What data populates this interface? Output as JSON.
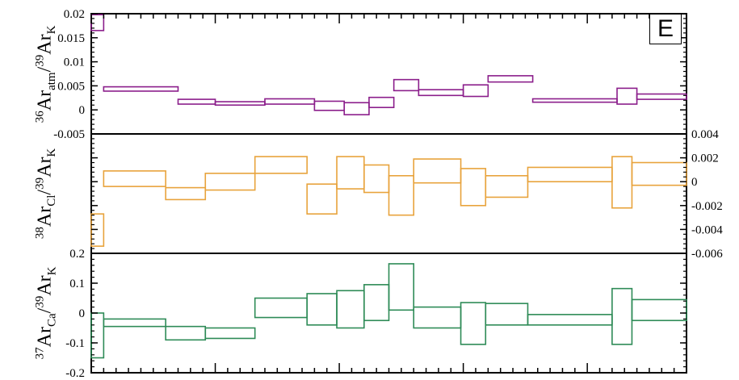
{
  "panel_label": "E",
  "chart_data": [
    {
      "type": "step-band",
      "ylabel": {
        "sup1": "36",
        "base1": "Ar",
        "sub1": "atm",
        "sep": "/",
        "sup2": "39",
        "base2": "Ar",
        "sub2": "K"
      },
      "ylim": [
        -0.005,
        0.02
      ],
      "yaxis_side": "left",
      "yticks": [
        "0.02",
        "0.015",
        "0.01",
        "0.005",
        "0",
        "-0.005"
      ],
      "ytick_values": [
        0.02,
        0.015,
        0.01,
        0.005,
        0,
        -0.005
      ],
      "color": "#8B1E8B",
      "steps": [
        {
          "x0": 0,
          "x1": 0.5,
          "lo": 0.0165,
          "hi": 0.0198
        },
        {
          "x0": 0.5,
          "x1": 3.5,
          "lo": 0.0039,
          "hi": 0.0048
        },
        {
          "x0": 3.5,
          "x1": 5.0,
          "lo": 0.0012,
          "hi": 0.0022
        },
        {
          "x0": 5.0,
          "x1": 7.0,
          "lo": 0.001,
          "hi": 0.0017
        },
        {
          "x0": 7.0,
          "x1": 9.0,
          "lo": 0.0012,
          "hi": 0.0023
        },
        {
          "x0": 9.0,
          "x1": 10.2,
          "lo": -0.0001,
          "hi": 0.0018
        },
        {
          "x0": 10.2,
          "x1": 11.2,
          "lo": -0.001,
          "hi": 0.0015
        },
        {
          "x0": 11.2,
          "x1": 12.2,
          "lo": 0.0005,
          "hi": 0.0026
        },
        {
          "x0": 12.2,
          "x1": 13.2,
          "lo": 0.004,
          "hi": 0.0063
        },
        {
          "x0": 13.2,
          "x1": 15.0,
          "lo": 0.003,
          "hi": 0.0042
        },
        {
          "x0": 15.0,
          "x1": 16.0,
          "lo": 0.0028,
          "hi": 0.0052
        },
        {
          "x0": 16.0,
          "x1": 17.8,
          "lo": 0.0058,
          "hi": 0.0071
        },
        {
          "x0": 17.8,
          "x1": 21.2,
          "lo": 0.0016,
          "hi": 0.0023
        },
        {
          "x0": 21.2,
          "x1": 22.0,
          "lo": 0.0012,
          "hi": 0.0045
        },
        {
          "x0": 22.0,
          "x1": 24.0,
          "lo": 0.0022,
          "hi": 0.0033
        }
      ]
    },
    {
      "type": "step-band",
      "ylabel": {
        "sup1": "38",
        "base1": "Ar",
        "sub1": "Cl",
        "sep": "/",
        "sup2": "39",
        "base2": "Ar",
        "sub2": "K"
      },
      "ylim": [
        -0.006,
        0.004
      ],
      "yaxis_side": "right",
      "yticks": [
        "0.004",
        "0.002",
        "0",
        "-0.002",
        "-0.004",
        "-0.006"
      ],
      "ytick_values": [
        0.004,
        0.002,
        0,
        -0.002,
        -0.004,
        -0.006
      ],
      "color": "#E8A33C",
      "steps": [
        {
          "x0": 0,
          "x1": 0.5,
          "lo": -0.0054,
          "hi": -0.0027
        },
        {
          "x0": 0.5,
          "x1": 3.0,
          "lo": -0.0004,
          "hi": 0.0009
        },
        {
          "x0": 3.0,
          "x1": 4.6,
          "lo": -0.0015,
          "hi": -0.0005
        },
        {
          "x0": 4.6,
          "x1": 6.6,
          "lo": -0.0007,
          "hi": 0.0007
        },
        {
          "x0": 6.6,
          "x1": 8.7,
          "lo": 0.0007,
          "hi": 0.0021
        },
        {
          "x0": 8.7,
          "x1": 9.9,
          "lo": -0.0027,
          "hi": -0.0002
        },
        {
          "x0": 9.9,
          "x1": 11.0,
          "lo": -0.0006,
          "hi": 0.0021
        },
        {
          "x0": 11.0,
          "x1": 12.0,
          "lo": -0.0009,
          "hi": 0.0014
        },
        {
          "x0": 12.0,
          "x1": 13.0,
          "lo": -0.0028,
          "hi": 0.0005
        },
        {
          "x0": 13.0,
          "x1": 14.9,
          "lo": -0.0001,
          "hi": 0.0019
        },
        {
          "x0": 14.9,
          "x1": 15.9,
          "lo": -0.002,
          "hi": 0.0011
        },
        {
          "x0": 15.9,
          "x1": 17.6,
          "lo": -0.0013,
          "hi": 0.0005
        },
        {
          "x0": 17.6,
          "x1": 21.0,
          "lo": 0.0,
          "hi": 0.0012
        },
        {
          "x0": 21.0,
          "x1": 21.8,
          "lo": -0.0022,
          "hi": 0.0021
        },
        {
          "x0": 21.8,
          "x1": 24.0,
          "lo": -0.0003,
          "hi": 0.0016
        }
      ]
    },
    {
      "type": "step-band",
      "ylabel": {
        "sup1": "37",
        "base1": "Ar",
        "sub1": "Ca",
        "sep": "/",
        "sup2": "39",
        "base2": "Ar",
        "sub2": "K"
      },
      "ylim": [
        -0.2,
        0.2
      ],
      "yaxis_side": "left",
      "yticks": [
        "0.2",
        "0.1",
        "0",
        "-0.1",
        "-0.2"
      ],
      "ytick_values": [
        0.2,
        0.1,
        0,
        -0.1,
        -0.2
      ],
      "color": "#2E8B57",
      "steps": [
        {
          "x0": 0,
          "x1": 0.5,
          "lo": -0.15,
          "hi": 0.0
        },
        {
          "x0": 0.5,
          "x1": 3.0,
          "lo": -0.045,
          "hi": -0.02
        },
        {
          "x0": 3.0,
          "x1": 4.6,
          "lo": -0.09,
          "hi": -0.045
        },
        {
          "x0": 4.6,
          "x1": 6.6,
          "lo": -0.085,
          "hi": -0.05
        },
        {
          "x0": 6.6,
          "x1": 8.7,
          "lo": -0.015,
          "hi": 0.05
        },
        {
          "x0": 8.7,
          "x1": 9.9,
          "lo": -0.04,
          "hi": 0.065
        },
        {
          "x0": 9.9,
          "x1": 11.0,
          "lo": -0.05,
          "hi": 0.075
        },
        {
          "x0": 11.0,
          "x1": 12.0,
          "lo": -0.025,
          "hi": 0.095
        },
        {
          "x0": 12.0,
          "x1": 13.0,
          "lo": 0.01,
          "hi": 0.165
        },
        {
          "x0": 13.0,
          "x1": 14.9,
          "lo": -0.05,
          "hi": 0.02
        },
        {
          "x0": 14.9,
          "x1": 15.9,
          "lo": -0.105,
          "hi": 0.035
        },
        {
          "x0": 15.9,
          "x1": 17.6,
          "lo": -0.04,
          "hi": 0.032
        },
        {
          "x0": 17.6,
          "x1": 21.0,
          "lo": -0.04,
          "hi": -0.005
        },
        {
          "x0": 21.0,
          "x1": 21.8,
          "lo": -0.105,
          "hi": 0.082
        },
        {
          "x0": 21.8,
          "x1": 24.0,
          "lo": -0.025,
          "hi": 0.045
        }
      ]
    }
  ],
  "xlim": [
    0,
    24
  ]
}
